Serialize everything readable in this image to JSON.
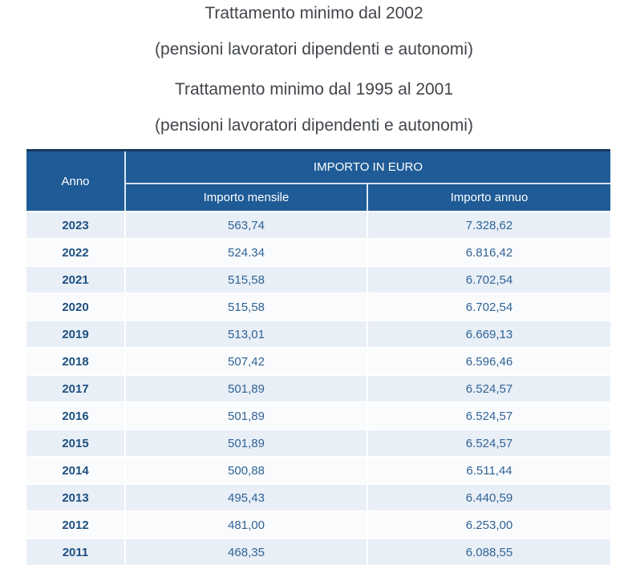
{
  "titles": {
    "title1": "Trattamento minimo dal 2002",
    "subtitle1": "(pensioni lavoratori dipendenti e autonomi)",
    "title2": "Trattamento minimo dal 1995 al 2001",
    "subtitle2": "(pensioni lavoratori dipendenti e autonomi)"
  },
  "colors": {
    "header_bg": "#1f5b96",
    "header_top_border": "#16395c",
    "row_alt_bg": "#e9eff7",
    "row_base_bg": "#fafbfd",
    "year_text": "#1d5080",
    "value_text": "#2f6394",
    "title_text": "#42464b"
  },
  "table": {
    "col_year": "Anno",
    "col_group": "IMPORTO IN EURO",
    "col_monthly": "Importo mensile",
    "col_annual": "Importo annuo",
    "rows": [
      {
        "year": "2023",
        "monthly": "563,74",
        "annual": "7.328,62"
      },
      {
        "year": "2022",
        "monthly": "524.34",
        "annual": "6.816,42"
      },
      {
        "year": "2021",
        "monthly": "515,58",
        "annual": "6.702,54"
      },
      {
        "year": "2020",
        "monthly": "515,58",
        "annual": "6.702,54"
      },
      {
        "year": "2019",
        "monthly": "513,01",
        "annual": "6.669,13"
      },
      {
        "year": "2018",
        "monthly": "507,42",
        "annual": "6.596,46"
      },
      {
        "year": "2017",
        "monthly": "501,89",
        "annual": "6.524,57"
      },
      {
        "year": "2016",
        "monthly": "501,89",
        "annual": "6.524,57"
      },
      {
        "year": "2015",
        "monthly": "501,89",
        "annual": "6.524,57"
      },
      {
        "year": "2014",
        "monthly": "500,88",
        "annual": "6.511,44"
      },
      {
        "year": "2013",
        "monthly": "495,43",
        "annual": "6.440,59"
      },
      {
        "year": "2012",
        "monthly": "481,00",
        "annual": "6.253,00"
      },
      {
        "year": "2011",
        "monthly": "468,35",
        "annual": "6.088,55"
      }
    ]
  }
}
